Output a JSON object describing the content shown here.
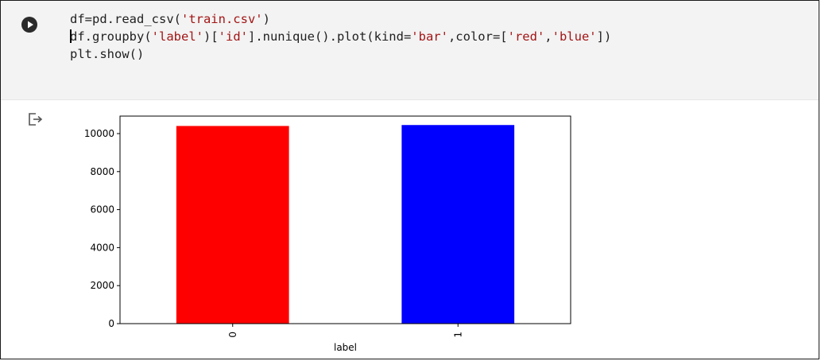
{
  "cell": {
    "run_button_icon": "play-icon",
    "code_lines": [
      [
        "df=pd.read_csv(",
        "'train.csv'",
        ")"
      ],
      [
        "df.groupby(",
        "'label'",
        ")[",
        "'id'",
        "].nunique().plot(kind=",
        "'bar'",
        ",color=[",
        "'red'",
        ",",
        "'blue'",
        "])"
      ],
      [
        "plt.show()"
      ]
    ]
  },
  "output": {
    "icon": "output-arrow-icon"
  },
  "chart_data": {
    "type": "bar",
    "categories": [
      "0",
      "1"
    ],
    "values": [
      10400,
      10450
    ],
    "colors": [
      "#ff0000",
      "#0000ff"
    ],
    "xlabel": "label",
    "ylabel": "",
    "title": "",
    "yticks": [
      0,
      2000,
      4000,
      6000,
      8000,
      10000
    ],
    "ylim": [
      0,
      10920
    ],
    "grid": false
  }
}
